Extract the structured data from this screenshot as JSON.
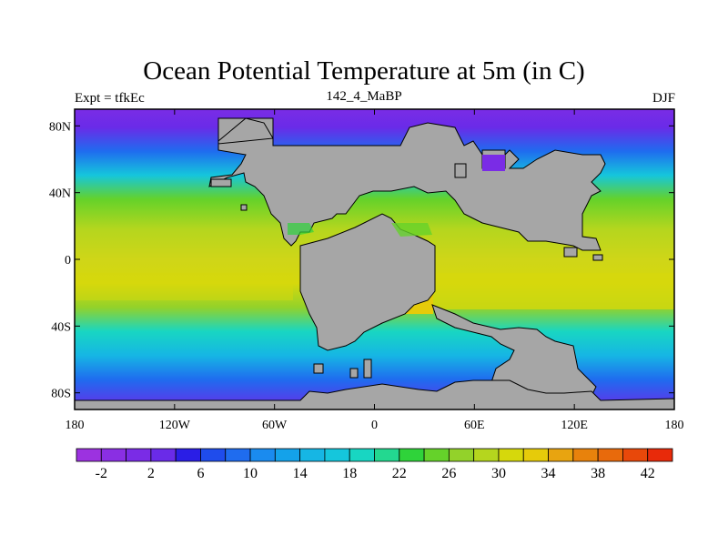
{
  "title": "Ocean Potential Temperature at 5m (in C)",
  "subtitle_left": "Expt = tfkEc",
  "subtitle_center": "142_4_MaBP",
  "subtitle_right": "DJF",
  "map": {
    "lon_range": [
      -180,
      180
    ],
    "lat_range": [
      -90,
      90
    ],
    "lat_ticks": [
      {
        "value": 80,
        "label": "80N"
      },
      {
        "value": 40,
        "label": "40N"
      },
      {
        "value": 0,
        "label": "0"
      },
      {
        "value": -40,
        "label": "40S"
      },
      {
        "value": -80,
        "label": "80S"
      }
    ],
    "lon_ticks": [
      {
        "value": -180,
        "label": "180"
      },
      {
        "value": -120,
        "label": "120W"
      },
      {
        "value": -60,
        "label": "60W"
      },
      {
        "value": 0,
        "label": "0"
      },
      {
        "value": 60,
        "label": "60E"
      },
      {
        "value": 120,
        "label": "120E"
      },
      {
        "value": 180,
        "label": "180"
      }
    ],
    "land_color": "#a6a6a6"
  },
  "colorbar": {
    "colors": [
      "#9c32e0",
      "#8a2fe3",
      "#7a2ce6",
      "#6a2be8",
      "#2a1ee6",
      "#1f4cec",
      "#1f6cef",
      "#1a8bef",
      "#14a2ea",
      "#16b6e4",
      "#15c6dc",
      "#18d6c2",
      "#23d890",
      "#2fd33a",
      "#65d22a",
      "#93d22a",
      "#b5d61e",
      "#d6d80c",
      "#e6cb0a",
      "#e8a410",
      "#e8820c",
      "#e86a0c",
      "#e8480a",
      "#e82a0a"
    ],
    "tick_labels": [
      "-2",
      "2",
      "6",
      "10",
      "14",
      "18",
      "22",
      "26",
      "30",
      "34",
      "38",
      "42"
    ]
  }
}
